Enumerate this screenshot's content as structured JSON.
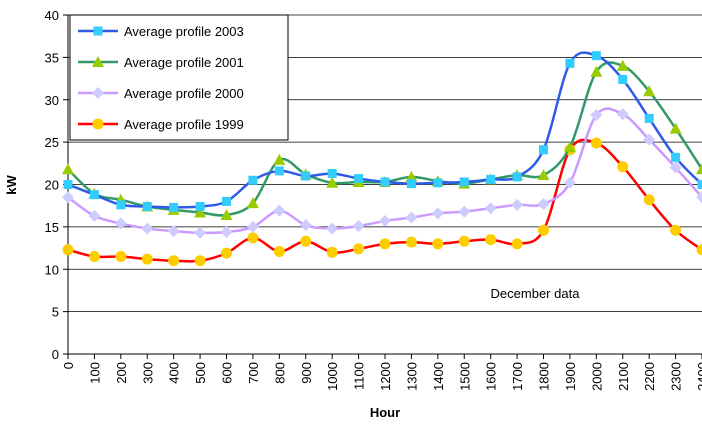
{
  "chart_data": {
    "type": "line",
    "annotation": "December data",
    "x_label": "Hour",
    "y_label": "kW",
    "x": [
      0,
      100,
      200,
      300,
      400,
      500,
      600,
      700,
      800,
      900,
      1000,
      1100,
      1200,
      1300,
      1400,
      1500,
      1600,
      1700,
      1800,
      1900,
      2000,
      2100,
      2200,
      2300,
      2400
    ],
    "xlim": [
      0,
      2400
    ],
    "xticks": [
      0,
      100,
      200,
      300,
      400,
      500,
      600,
      700,
      800,
      900,
      1000,
      1100,
      1200,
      1300,
      1400,
      1500,
      1600,
      1700,
      1800,
      1900,
      2000,
      2100,
      2200,
      2300,
      2400
    ],
    "ylim": [
      0,
      40
    ],
    "yticks": [
      0,
      5,
      10,
      15,
      20,
      25,
      30,
      35,
      40
    ],
    "grid": true,
    "smooth": true,
    "legend": "upper left",
    "series": [
      {
        "name": "Average profile 2003",
        "color": "#2E5BE6",
        "marker_color": "#33CCFF",
        "marker": "square",
        "values": [
          20,
          18.8,
          17.6,
          17.4,
          17.3,
          17.4,
          18,
          20.5,
          21.6,
          21,
          21.3,
          20.7,
          20.3,
          20.1,
          20.2,
          20.3,
          20.6,
          20.9,
          24.1,
          34.3,
          35.2,
          32.4,
          27.8,
          23.2,
          20
        ]
      },
      {
        "name": "Average profile 2001",
        "color": "#339966",
        "marker_color": "#99CC00",
        "marker": "triangle",
        "values": [
          21.8,
          18.9,
          18.2,
          17.4,
          17,
          16.7,
          16.4,
          17.8,
          22.9,
          21.2,
          20.2,
          20.3,
          20.3,
          20.9,
          20.4,
          20.1,
          20.6,
          21.1,
          21.1,
          24.4,
          33.3,
          34,
          31,
          26.6,
          21.8
        ]
      },
      {
        "name": "Average profile 2000",
        "color": "#CC99FF",
        "marker_color": "#CCCCFF",
        "marker": "diamond",
        "values": [
          18.5,
          16.3,
          15.4,
          14.8,
          14.5,
          14.3,
          14.4,
          15,
          16.9,
          15.2,
          14.8,
          15.1,
          15.7,
          16.1,
          16.6,
          16.8,
          17.2,
          17.6,
          17.7,
          20.2,
          28.2,
          28.3,
          25.3,
          22,
          18.5
        ]
      },
      {
        "name": "Average profile 1999",
        "color": "#FF0000",
        "marker_color": "#FFCC00",
        "marker": "circle",
        "values": [
          12.3,
          11.5,
          11.5,
          11.2,
          11,
          11,
          11.9,
          13.7,
          12.1,
          13.3,
          12,
          12.4,
          13,
          13.2,
          13,
          13.3,
          13.5,
          13,
          14.6,
          24.1,
          24.9,
          22.1,
          18.2,
          14.6,
          12.3
        ]
      }
    ]
  }
}
